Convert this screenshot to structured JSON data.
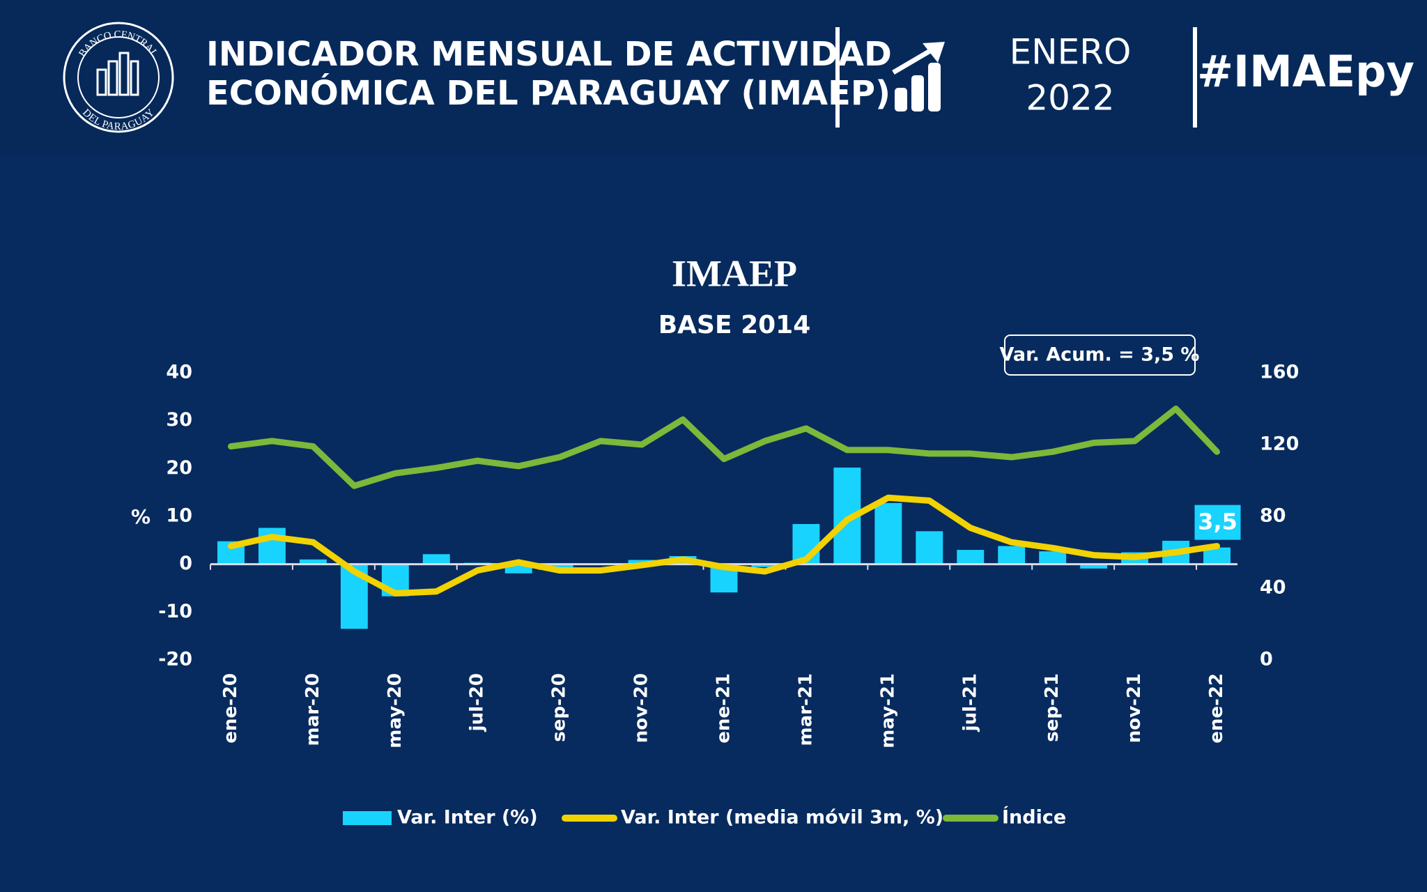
{
  "header": {
    "logo_top": "BANCO CENTRAL",
    "logo_bottom": "DEL PARAGUAY",
    "title_lines": [
      "INDICADOR MENSUAL DE ACTIVIDAD",
      "ECONÓMICA DEL PARAGUAY (IMAEP)"
    ],
    "month": "ENERO",
    "year": "2022",
    "hashtag": "#IMAEpy"
  },
  "chart_data": {
    "type": "bar",
    "title": "IMAEP",
    "subtitle": "BASE 2014",
    "y_label": "%",
    "annotations": [
      "Var. Acum. = 3,5 %"
    ],
    "categories": [
      "ene-20",
      null,
      "mar-20",
      null,
      "may-20",
      null,
      "jul-20",
      null,
      "sep-20",
      null,
      "nov-20",
      null,
      "ene-21",
      null,
      "mar-21",
      null,
      "may-21",
      null,
      "jul-21",
      null,
      "sep-21",
      null,
      "nov-21",
      null,
      "ene-22"
    ],
    "series": [
      {
        "name": "Var. Inter (%)",
        "type": "bar",
        "color": "#19d3ff",
        "values": [
          4.8,
          7.6,
          1.0,
          -13.5,
          -6.7,
          2.1,
          0.3,
          -1.9,
          -0.8,
          0.0,
          0.9,
          1.7,
          -5.9,
          -0.6,
          8.4,
          20.2,
          12.8,
          6.9,
          3.0,
          3.8,
          2.7,
          -0.9,
          2.5,
          4.9,
          3.5
        ],
        "value_labels": [
          null,
          null,
          null,
          null,
          null,
          null,
          null,
          null,
          null,
          null,
          null,
          null,
          null,
          null,
          null,
          null,
          null,
          null,
          null,
          null,
          null,
          null,
          null,
          null,
          "3,5"
        ]
      },
      {
        "name": "Var. Inter (media móvil 3m, %)",
        "type": "line",
        "color": "#f2d200",
        "values": [
          3.8,
          5.7,
          4.6,
          -1.5,
          -6.1,
          -5.7,
          -1.3,
          0.4,
          -1.3,
          -1.3,
          -0.2,
          1.0,
          -0.6,
          -1.5,
          1.0,
          9.3,
          13.9,
          13.3,
          7.6,
          4.6,
          3.4,
          1.9,
          1.5,
          2.5,
          3.8
        ]
      },
      {
        "name": "Índice",
        "type": "line",
        "color": "#7cb83a",
        "axis": "y2",
        "values": [
          119,
          122,
          119,
          97,
          104,
          107,
          111,
          108,
          113,
          122,
          120,
          134,
          112,
          122,
          129,
          117,
          117,
          115,
          115,
          113,
          116,
          121,
          122,
          140,
          116
        ]
      }
    ],
    "ylim": [
      -20,
      40
    ],
    "yticks": [
      -20,
      -10,
      0,
      10,
      20,
      30,
      40
    ],
    "y2lim": [
      0,
      160
    ],
    "y2ticks": [
      0,
      40,
      80,
      120,
      160
    ],
    "legend": "bottom"
  }
}
